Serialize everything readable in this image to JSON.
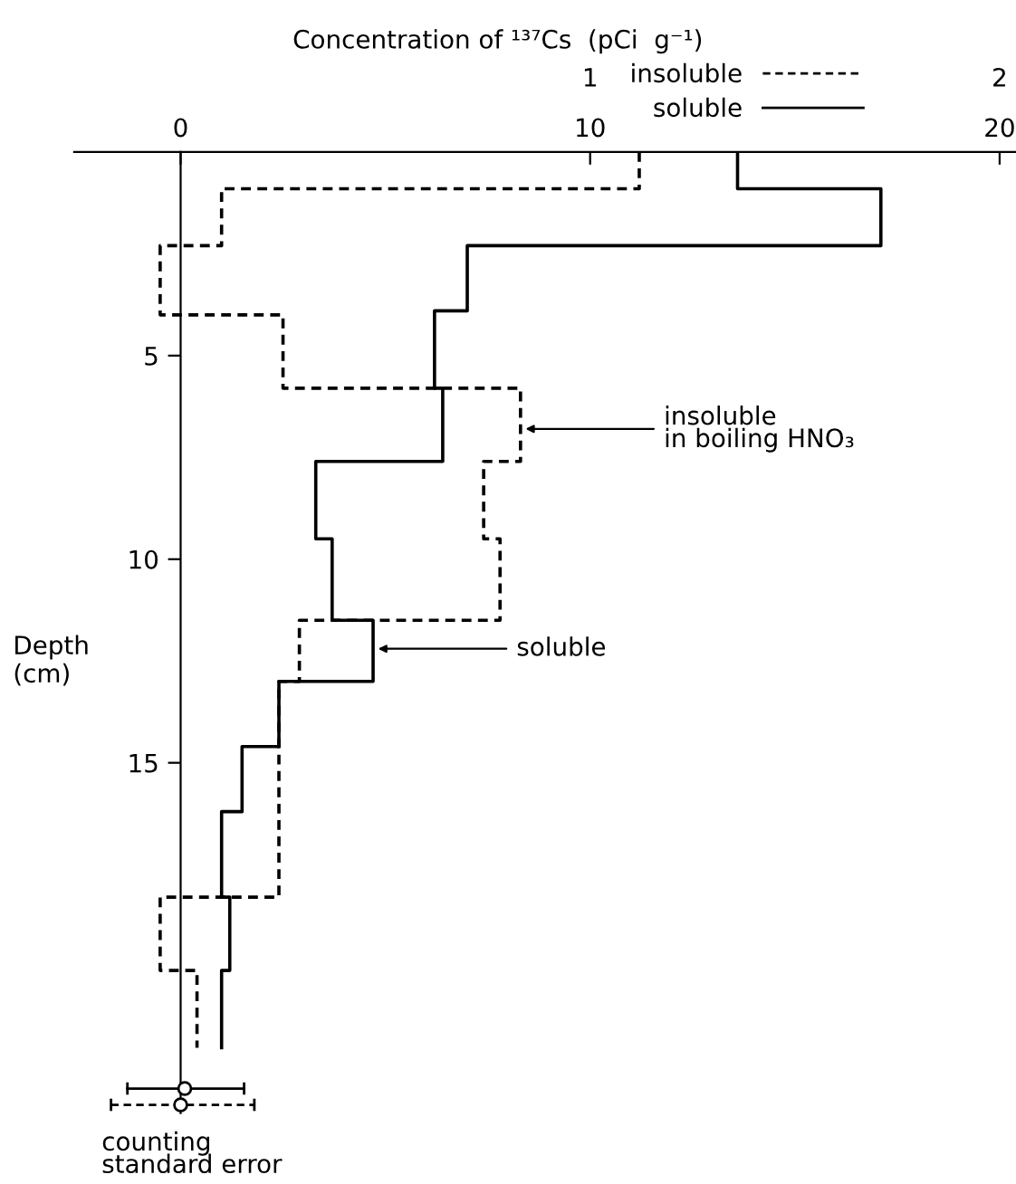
{
  "chart_data": {
    "type": "step",
    "orientation": "horizontal",
    "title": "Concentration of ¹³⁷Cs  (pCi  g⁻¹)",
    "ylabel": "Depth\n(cm)",
    "xlim": [
      -2.6,
      20.4
    ],
    "xticks": [
      0,
      10,
      20
    ],
    "x2lim": [
      -0.26,
      2.04
    ],
    "x2ticks": [
      {
        "value": 0,
        "label": null
      },
      1,
      2
    ],
    "ylim": [
      23.6,
      0
    ],
    "yticks": [
      5,
      10,
      15
    ],
    "grid": false,
    "legend": "top right",
    "series": [
      {
        "name": "insoluble",
        "axis": "x2",
        "color": "#000000",
        "line_style": "dashed",
        "x": [
          0,
          0.9,
          2.3,
          4.0,
          5.8,
          7.6,
          9.5,
          11.5,
          13.0,
          18.3,
          20.1,
          22.0
        ],
        "values": [
          1.12,
          0.1,
          -0.05,
          0.25,
          0.83,
          0.74,
          0.78,
          0.29,
          0.24,
          -0.05,
          0.04,
          0.04
        ]
      },
      {
        "name": "soluble",
        "color": "#000000",
        "line_style": "solid",
        "x": [
          0,
          0.9,
          2.3,
          3.9,
          5.8,
          7.6,
          9.5,
          11.5,
          13.0,
          14.6,
          16.2,
          18.3,
          20.1,
          22.0
        ],
        "values": [
          13.6,
          17.1,
          7.0,
          6.2,
          6.4,
          3.3,
          3.7,
          4.7,
          2.4,
          1.5,
          1.0,
          1.2,
          1.0,
          1.0
        ]
      },
      {
        "type": "scatter",
        "color": "#000000",
        "line_style": "solid",
        "marker": "circle",
        "x": [
          23.0
        ],
        "values": [
          0.1
        ],
        "errors": [
          [
            -1.3,
            1.55
          ]
        ]
      },
      {
        "type": "scatter",
        "axis": "x2",
        "color": "#000000",
        "line_style": "dashed",
        "marker": "circle",
        "x": [
          23.4
        ],
        "values": [
          0.0
        ],
        "errors": [
          [
            -0.17,
            0.18
          ]
        ]
      }
    ],
    "annotations": [
      {
        "text": "insoluble\nin boiling HNO₃",
        "x": 8.3,
        "y": 6.8
      },
      {
        "text": "soluble",
        "x": 4.7,
        "y": 12.2
      },
      "counting\nstandard error"
    ]
  }
}
